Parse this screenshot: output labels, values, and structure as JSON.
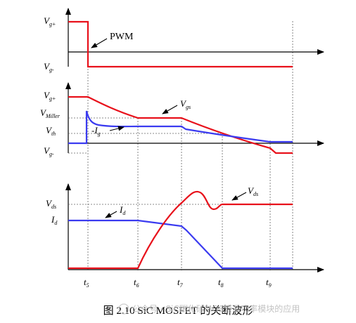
{
  "panels": {
    "gate_drive": {
      "y_labels": [
        {
          "main": "V",
          "sub": "g+"
        },
        {
          "main": "V",
          "sub": "g-"
        }
      ],
      "annotation": "PWM"
    },
    "gate_waveform": {
      "y_labels": [
        {
          "main": "V",
          "sub": "g+"
        },
        {
          "main": "V",
          "sub": "Miller"
        },
        {
          "main": "V",
          "sub": "th"
        },
        {
          "main": "V",
          "sub": "g-"
        }
      ],
      "annotation_vgs": {
        "main": "V",
        "sub": "gs"
      },
      "annotation_ig": {
        "main": "-I",
        "sub": "g"
      }
    },
    "power_waveform": {
      "y_labels": [
        {
          "main": "V",
          "sub": "ds"
        },
        {
          "main": "I",
          "sub": "d"
        }
      ],
      "annotation_vds": {
        "main": "V",
        "sub": "ds"
      },
      "annotation_id": {
        "main": "I",
        "sub": "d"
      }
    }
  },
  "time_labels": [
    {
      "main": "t",
      "sub": "5"
    },
    {
      "main": "t",
      "sub": "6"
    },
    {
      "main": "t",
      "sub": "7"
    },
    {
      "main": "t",
      "sub": "8"
    },
    {
      "main": "t",
      "sub": "9"
    }
  ],
  "caption": "图 2.10 SiC MOSFET 的关断波形",
  "watermark": "公众号 · SiC碳化硅MOS管及功率模块的应用",
  "colors": {
    "red": "#e8111b",
    "blue": "#3b3bf0",
    "axis": "#000000",
    "guide": "#555555"
  }
}
